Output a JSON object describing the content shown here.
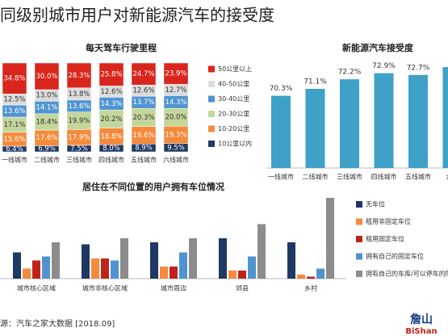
{
  "title": "同级别城市用户对新能源汽车的接受度",
  "source": "源：汽车之家大数据 [2018.09]",
  "logo": {
    "name": "詹山",
    "latin": "BiShan"
  },
  "chart_data": [
    {
      "type": "stacked-bar",
      "title": "每天驾车行驶里程",
      "categories": [
        "一线城市",
        "二线城市",
        "三线城市",
        "四线城市",
        "五线城市",
        "六线城市"
      ],
      "series": [
        {
          "name": "10公里以内",
          "color": "#1f3864",
          "values": [
            6.4,
            6.9,
            7.5,
            8.0,
            8.9,
            9.5
          ],
          "value_labels": [
            "6.4%",
            "6.9%",
            "7.5%",
            "8.0%",
            "8.9%",
            "9.5%"
          ]
        },
        {
          "name": "10-20公里",
          "color": "#f58a3c",
          "values": [
            15.6,
            17.6,
            17.9,
            18.8,
            19.6,
            19.3
          ],
          "value_labels": [
            "15.6%",
            "17.6%",
            "17.9%",
            "18.8%",
            "19.6%",
            "19.3%"
          ]
        },
        {
          "name": "20-30公里",
          "color": "#c4d79b",
          "values": [
            17.1,
            18.4,
            19.9,
            20.2,
            20.3,
            20.0
          ],
          "value_labels": [
            "17.1%",
            "18.4%",
            "19.9%",
            "20.2%",
            "20.3%",
            "20.0%"
          ]
        },
        {
          "name": "30-40公里",
          "color": "#4f94d0",
          "values": [
            13.6,
            14.1,
            13.6,
            14.3,
            13.7,
            14.3
          ],
          "value_labels": [
            "13.6%",
            "14.1%",
            "13.6%",
            "14.3%",
            "13.7%",
            "14.3%"
          ]
        },
        {
          "name": "40-50公里",
          "color": "#dcdcdc",
          "values": [
            12.5,
            13.0,
            13.8,
            12.6,
            12.6,
            12.7
          ],
          "value_labels": [
            "12.5%",
            "13.0%",
            "13.8%",
            "12.6%",
            "12.6%",
            "12.7%"
          ]
        },
        {
          "name": "50公里以上",
          "color": "#d9261c",
          "values": [
            34.8,
            30.0,
            28.3,
            25.8,
            24.7,
            23.9
          ],
          "value_labels": [
            "34.8%",
            "30.0%",
            "28.3%",
            "25.8%",
            "24.7%",
            "23.9%"
          ]
        }
      ]
    },
    {
      "type": "bar",
      "title": "新能源汽车接受度",
      "categories": [
        "一线城市",
        "二线城市",
        "三线城市",
        "四线城市",
        "五线城市",
        "六线"
      ],
      "values": [
        70.3,
        71.1,
        72.2,
        72.9,
        72.7,
        73.6
      ],
      "value_labels": [
        "70.3%",
        "71.1%",
        "72.2%",
        "72.9%",
        "72.7%",
        null
      ],
      "color": "#3fa0c8",
      "ylim": [
        62,
        75
      ]
    },
    {
      "type": "grouped-bar",
      "title": "居住在不同位置的用户拥有车位情况",
      "categories": [
        "城市核心区域",
        "城市非核心区域",
        "城市周边",
        "郊县",
        "乡村"
      ],
      "series": [
        {
          "name": "无车位",
          "color": "#1f3864",
          "values": [
            13,
            17,
            18,
            20,
            18
          ]
        },
        {
          "name": "租用非固定车位",
          "color": "#f58a3c",
          "values": [
            5,
            10,
            6,
            4,
            2
          ]
        },
        {
          "name": "租用固定车位",
          "color": "#c0221a",
          "values": [
            9,
            10,
            6,
            4,
            1
          ]
        },
        {
          "name": "拥有自己的固定车位",
          "color": "#4f94d0",
          "values": [
            11,
            9,
            13,
            11,
            5
          ]
        },
        {
          "name": "拥有自己的车库/可以停车的院",
          "color": "#8c8c8c",
          "values": [
            18,
            20,
            20,
            27,
            40
          ]
        }
      ],
      "ylim": [
        0,
        50
      ]
    }
  ]
}
